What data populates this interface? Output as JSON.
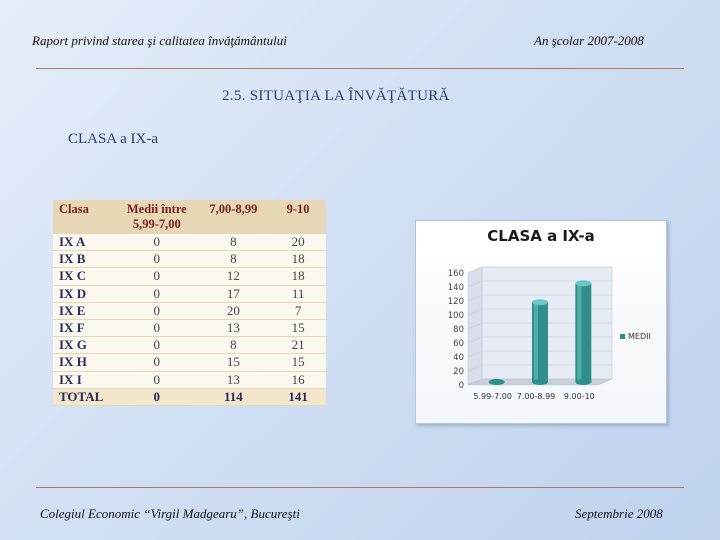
{
  "header": {
    "left": "Raport privind starea şi calitatea învăţământului",
    "right": "An şcolar 2007-2008"
  },
  "section_title": "2.5.   SITUAŢIA LA ÎNVĂŢĂTURĂ",
  "class_label": "CLASA a IX-a",
  "table": {
    "headers": [
      "Clasa",
      "Medii între 5,99-7,00",
      "7,00-8,99",
      "9-10"
    ],
    "rows": [
      [
        "IX A",
        "0",
        "8",
        "20"
      ],
      [
        "IX B",
        "0",
        "8",
        "18"
      ],
      [
        "IX C",
        "0",
        "12",
        "18"
      ],
      [
        "IX D",
        "0",
        "17",
        "11"
      ],
      [
        "IX E",
        "0",
        "20",
        "7"
      ],
      [
        "IX F",
        "0",
        "13",
        "15"
      ],
      [
        "IX G",
        "0",
        "8",
        "21"
      ],
      [
        "IX H",
        "0",
        "15",
        "15"
      ],
      [
        "IX I",
        "0",
        "13",
        "16"
      ]
    ],
    "total": [
      "TOTAL",
      "0",
      "114",
      "141"
    ]
  },
  "chart_data": {
    "type": "bar",
    "title": "CLASA  a IX-a",
    "categories": [
      "5.99-7.00",
      "7.00-8.99",
      "9.00-10"
    ],
    "series": [
      {
        "name": "MEDII",
        "values": [
          0,
          114,
          141
        ]
      }
    ],
    "ylim": [
      0,
      160
    ],
    "yticks": [
      0,
      20,
      40,
      60,
      80,
      100,
      120,
      140,
      160
    ],
    "legend": "right",
    "bar_color": "#2e8f8c"
  },
  "footer": {
    "left": "Colegiul Economic “Virgil Madgearu”, Bucureşti",
    "right": "Septembrie 2008"
  }
}
